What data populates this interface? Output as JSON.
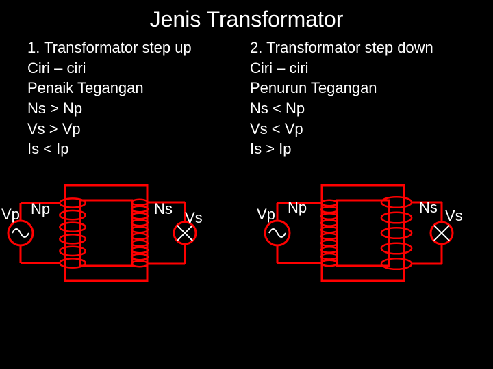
{
  "title": "Jenis Transformator",
  "leftText": {
    "l1": "1. Transformator step up",
    "l2": "Ciri – ciri",
    "l3": "Penaik Tegangan",
    "l4": "Ns > Np",
    "l5": "Vs > Vp",
    "l6": "Is  < Ip"
  },
  "rightText": {
    "l1": "2. Transformator step down",
    "l2": "Ciri – ciri",
    "l3": "Penurun Tegangan",
    "l4": "Ns < Np",
    "l5": "Vs < Vp",
    "l6": "Is  > Ip"
  },
  "labels": {
    "Vp": "Vp",
    "Np": "Np",
    "Ns": "Ns",
    "Vs": "Vs"
  },
  "style": {
    "bg": "#000000",
    "text": "#ffffff",
    "coreColor": "#ff0000",
    "coilColor": "#ff0000",
    "wireColor": "#ff0000",
    "symbolStroke": "#ffffff",
    "strokeWidth": 3
  },
  "diagrams": {
    "stepUp": {
      "primaryLoops": 6,
      "secondaryLoops": 10,
      "primaryLoopR": 11,
      "secondaryLoopR": 7
    },
    "stepDown": {
      "primaryLoops": 10,
      "secondaryLoops": 5,
      "primaryLoopR": 7,
      "secondaryLoopR": 13
    }
  }
}
